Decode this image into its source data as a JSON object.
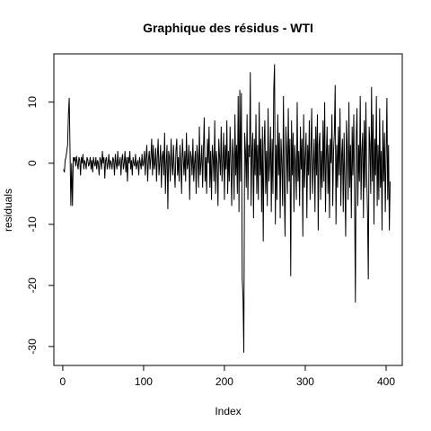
{
  "chart_data": {
    "type": "line",
    "title": "Graphique des résidus - WTI",
    "x_label": "Index",
    "y_label": "residuals",
    "xlim": [
      -11,
      420
    ],
    "ylim": [
      -33.1,
      17.9
    ],
    "xticks": [
      0,
      100,
      200,
      300,
      400
    ],
    "yticks": [
      -30,
      -20,
      -10,
      0,
      10
    ],
    "color": "#000000",
    "values": [
      -1,
      -1.5,
      0.5,
      1,
      2,
      3,
      8,
      10.7,
      2,
      -7,
      0,
      -7,
      1,
      0.5,
      1,
      -0.5,
      1.2,
      0,
      -1,
      1,
      0.5,
      -2,
      1,
      0,
      1.5,
      -1,
      0.5,
      0,
      -1,
      1,
      0.5,
      -0.5,
      0,
      1,
      -1,
      0.5,
      -1.5,
      1,
      0,
      -0.5,
      1,
      -1,
      0.5,
      0,
      -2,
      1,
      0.5,
      -1,
      2,
      0,
      1,
      -2.5,
      0.5,
      1,
      -1,
      0,
      1.5,
      -1,
      0.5,
      0,
      -1,
      1,
      0.5,
      -2,
      1.5,
      0,
      -1,
      2,
      -0.5,
      0,
      1,
      -2,
      0.5,
      1.5,
      -1,
      0,
      2,
      -1.5,
      1,
      -3,
      1,
      0,
      2,
      -1,
      0.5,
      -2,
      1,
      0,
      -0.5,
      1.5,
      -1,
      0,
      0.5,
      -2,
      1,
      0,
      -1,
      1.5,
      -0.5,
      0,
      2,
      -2,
      1,
      3,
      -3,
      0.5,
      2,
      -1,
      1,
      4,
      -2,
      3,
      -1,
      0,
      2.5,
      -3,
      1,
      4,
      -2,
      0,
      3,
      -4,
      1,
      2,
      -2,
      5,
      -5,
      0,
      3,
      -7.5,
      2,
      1,
      -3,
      4,
      0,
      -2,
      3,
      -1,
      -4,
      2,
      4,
      -2,
      1,
      -3,
      3,
      0,
      -5,
      4,
      1,
      -2,
      2,
      -3,
      5,
      -1,
      0,
      3,
      -6,
      2,
      1,
      -2,
      4,
      -3,
      0,
      2,
      -5,
      3,
      1,
      -4,
      6,
      -2,
      0,
      3,
      -4,
      2,
      7.5,
      -3,
      1,
      -5,
      4,
      0,
      6,
      -4,
      2,
      -6,
      3,
      1,
      -3,
      7,
      -5,
      2,
      0,
      -7,
      4,
      1,
      -2,
      6,
      -3,
      0,
      5,
      -6,
      3,
      -1,
      7,
      -5,
      2,
      -3,
      6,
      0,
      -7,
      4,
      1,
      -6,
      8,
      -2,
      3,
      -5,
      11,
      -8,
      12,
      -3,
      11.5,
      -19,
      -22,
      -31,
      5,
      2,
      -4,
      8,
      -6,
      3,
      1,
      14.9,
      -7,
      2,
      5,
      -9,
      4,
      -2,
      8,
      -5,
      3,
      -6,
      10,
      -2,
      4,
      -8,
      6,
      -12.8,
      3,
      7,
      -5,
      2,
      -7,
      9,
      -3,
      0,
      6,
      -8,
      4,
      -5,
      12,
      16.2,
      -10,
      3,
      -6,
      8,
      -2,
      5,
      -9,
      4,
      0,
      -7,
      11,
      -4,
      -12,
      6,
      2,
      -5,
      9,
      -3,
      4,
      -18.5,
      7,
      -2,
      5,
      -8,
      3,
      0,
      -6,
      10,
      -3,
      2,
      -7,
      6,
      -1,
      4,
      -12,
      8,
      -4,
      1,
      5,
      -9,
      3,
      -2,
      7,
      -6,
      2,
      9,
      -5,
      0,
      4,
      -8,
      6,
      -2,
      8,
      -11,
      3,
      5,
      -6,
      2,
      -4,
      7,
      -3,
      10,
      -8,
      1,
      6,
      -5,
      3,
      -9,
      4,
      0,
      8,
      -7,
      2,
      5,
      12.8,
      -10,
      3,
      -4,
      6,
      -2,
      9,
      -7,
      1,
      4,
      -8,
      5,
      -3,
      -12,
      7,
      2,
      -6,
      10,
      -4,
      3,
      -9,
      6,
      -2,
      8,
      -5,
      -22.8,
      4,
      9,
      -7,
      3,
      -3,
      11,
      -6,
      2,
      5,
      -9,
      7,
      -4,
      10,
      -2,
      -8,
      -19,
      6,
      3,
      -5,
      12.5,
      -3,
      8,
      -10,
      4,
      -2,
      11,
      -7,
      3,
      -6,
      9,
      -4,
      2,
      -11,
      7,
      -3,
      5,
      -8,
      1,
      10.7,
      -6,
      3,
      -11,
      -3
    ]
  }
}
